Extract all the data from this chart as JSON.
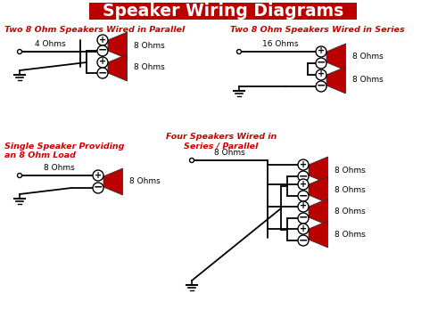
{
  "title": "Speaker Wiring Diagrams",
  "title_bg": "#bb0000",
  "title_fg": "#ffffff",
  "bg_color": "#ffffff",
  "red_color": "#cc0000",
  "black_color": "#000000",
  "section1_title": "Two 8 Ohm Speakers Wired in Parallel",
  "section2_title": "Two 8 Ohm Speakers Wired in Series",
  "section3_title": "Single Speaker Providing\nan 8 Ohm Load",
  "section4_title": "Four Speakers Wired in\nSeries / Parallel",
  "figw": 5.0,
  "figh": 3.75,
  "dpi": 100
}
